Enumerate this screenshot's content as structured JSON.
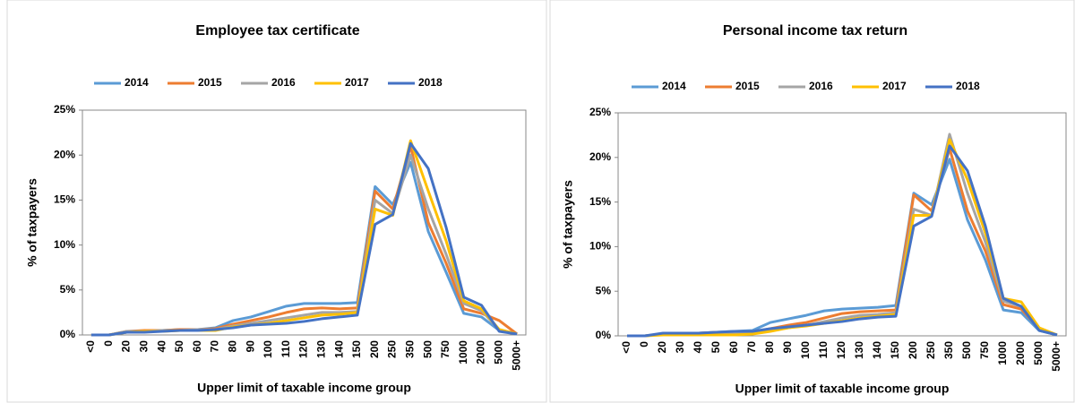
{
  "chart_data": [
    {
      "type": "line",
      "title": "Employee tax certificate",
      "x_label": "Upper limit of taxable income group",
      "y_label": "% of taxpayers",
      "categories": [
        "<0",
        "0",
        "20",
        "30",
        "40",
        "50",
        "60",
        "70",
        "80",
        "90",
        "100",
        "110",
        "120",
        "130",
        "140",
        "150",
        "200",
        "250",
        "350",
        "500",
        "750",
        "1000",
        "2000",
        "5000",
        "5000+"
      ],
      "ylim": [
        0,
        25
      ],
      "yticks": [
        {
          "value": 0,
          "label": "0%"
        },
        {
          "value": 5,
          "label": "5%"
        },
        {
          "value": 10,
          "label": "10%"
        },
        {
          "value": 15,
          "label": "15%"
        },
        {
          "value": 20,
          "label": "20%"
        },
        {
          "value": 25,
          "label": "25%"
        }
      ],
      "series": [
        {
          "name": "2014",
          "color": "#5b9bd5",
          "values": [
            0,
            0,
            0.3,
            0.4,
            0.5,
            0.6,
            0.6,
            0.8,
            1.6,
            2.0,
            2.6,
            3.2,
            3.5,
            3.5,
            3.5,
            3.6,
            16.5,
            14.5,
            19.2,
            11.5,
            7,
            2.4,
            2.0,
            0.5,
            0.1
          ]
        },
        {
          "name": "2015",
          "color": "#ed7d31",
          "values": [
            0,
            0,
            0.4,
            0.5,
            0.5,
            0.6,
            0.6,
            0.7,
            1.2,
            1.6,
            2.0,
            2.5,
            2.9,
            3.0,
            2.9,
            3.0,
            16.0,
            14.0,
            21.0,
            12.5,
            8,
            2.9,
            2.4,
            1.6,
            0.1
          ]
        },
        {
          "name": "2016",
          "color": "#a5a5a5",
          "values": [
            0,
            0,
            0.4,
            0.4,
            0.5,
            0.5,
            0.6,
            0.6,
            1.0,
            1.3,
            1.6,
            1.9,
            2.2,
            2.5,
            2.5,
            2.6,
            15.0,
            13.5,
            20.0,
            14.0,
            9,
            3.5,
            2.7,
            0.6,
            0.1
          ]
        },
        {
          "name": "2017",
          "color": "#ffc000",
          "values": [
            0,
            0,
            0.3,
            0.4,
            0.4,
            0.5,
            0.5,
            0.5,
            0.9,
            1.1,
            1.3,
            1.6,
            1.9,
            2.2,
            2.3,
            2.5,
            14.0,
            13.3,
            21.6,
            16.0,
            10.5,
            3.8,
            2.9,
            0.6,
            0.1
          ]
        },
        {
          "name": "2018",
          "color": "#4472c4",
          "values": [
            0,
            0,
            0.3,
            0.3,
            0.4,
            0.5,
            0.5,
            0.6,
            0.8,
            1.1,
            1.2,
            1.3,
            1.5,
            1.8,
            2.0,
            2.2,
            12.3,
            13.4,
            21.3,
            18.5,
            12,
            4.2,
            3.3,
            0.4,
            0.1
          ]
        }
      ]
    },
    {
      "type": "line",
      "title": "Personal income tax return",
      "x_label": "Upper limit of taxable income group",
      "y_label": "% of taxpayers",
      "categories": [
        "<0",
        "0",
        "20",
        "30",
        "40",
        "50",
        "60",
        "70",
        "80",
        "90",
        "100",
        "110",
        "120",
        "130",
        "140",
        "150",
        "200",
        "250",
        "350",
        "500",
        "750",
        "1000",
        "2000",
        "5000",
        "5000+"
      ],
      "ylim": [
        0,
        25
      ],
      "yticks": [
        {
          "value": 0,
          "label": "0%"
        },
        {
          "value": 5,
          "label": "5%"
        },
        {
          "value": 10,
          "label": "10%"
        },
        {
          "value": 15,
          "label": "15%"
        },
        {
          "value": 20,
          "label": "20%"
        },
        {
          "value": 25,
          "label": "25%"
        }
      ],
      "series": [
        {
          "name": "2014",
          "color": "#5b9bd5",
          "values": [
            0,
            0,
            0.2,
            0.2,
            0.3,
            0.4,
            0.5,
            0.6,
            1.5,
            1.9,
            2.3,
            2.8,
            3.0,
            3.1,
            3.2,
            3.4,
            16.0,
            14.7,
            19.8,
            13.0,
            8.5,
            2.9,
            2.6,
            0.6,
            0.1
          ]
        },
        {
          "name": "2015",
          "color": "#ed7d31",
          "values": [
            0,
            0,
            0.2,
            0.2,
            0.3,
            0.4,
            0.4,
            0.4,
            0.8,
            1.2,
            1.5,
            2.0,
            2.5,
            2.7,
            2.8,
            2.9,
            15.8,
            14.0,
            21.0,
            14.0,
            9.5,
            3.5,
            3.0,
            0.8,
            0.1
          ]
        },
        {
          "name": "2016",
          "color": "#a5a5a5",
          "values": [
            0,
            0,
            0.2,
            0.2,
            0.3,
            0.3,
            0.4,
            0.4,
            0.6,
            0.9,
            1.2,
            1.6,
            2.0,
            2.3,
            2.4,
            2.6,
            14.2,
            13.5,
            22.6,
            16.0,
            10.5,
            3.9,
            3.3,
            0.8,
            0.1
          ]
        },
        {
          "name": "2017",
          "color": "#ffc000",
          "values": [
            0,
            0,
            0.1,
            0.1,
            0.1,
            0.1,
            0.1,
            0.2,
            0.5,
            0.9,
            1.1,
            1.4,
            1.7,
            2.0,
            2.2,
            2.4,
            13.5,
            13.5,
            22.0,
            17.5,
            11.5,
            4.2,
            3.8,
            0.9,
            0.1
          ]
        },
        {
          "name": "2018",
          "color": "#4472c4",
          "values": [
            0,
            0,
            0.3,
            0.3,
            0.3,
            0.4,
            0.5,
            0.5,
            0.8,
            1.0,
            1.2,
            1.4,
            1.6,
            1.9,
            2.1,
            2.2,
            12.3,
            13.4,
            21.3,
            18.5,
            12.3,
            4.2,
            3.3,
            0.6,
            0.1
          ]
        }
      ]
    }
  ]
}
